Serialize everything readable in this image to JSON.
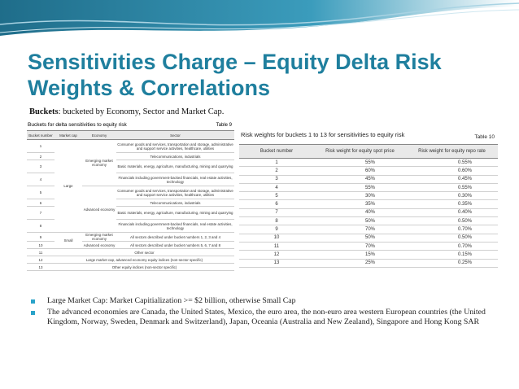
{
  "title": "Sensitivities Charge – Equity Delta Risk Weights & Correlations",
  "buckets_note": {
    "label": "Buckets",
    "text": ": bucketed by Economy, Sector and Market Cap."
  },
  "table9": {
    "caption": "Buckets for delta sensitivities to equity risk",
    "number": "Table 9",
    "headers": [
      "Bucket number",
      "Market cap",
      "Economy",
      "Sector"
    ],
    "market_cap": {
      "large": "Large",
      "small": "Small"
    },
    "economy": {
      "emerging": "Emerging market economy",
      "advanced": "Advanced economy"
    },
    "rows": [
      {
        "bucket": "1",
        "sector": "Consumer goods and services, transportation and storage, administrative and support service activities, healthcare, utilities"
      },
      {
        "bucket": "2",
        "sector": "Telecommunications, industrials"
      },
      {
        "bucket": "3",
        "sector": "Basic materials, energy, agriculture, manufacturing, mining and quarrying"
      },
      {
        "bucket": "4",
        "sector": "Financials including government-backed financials, real estate activities, technology"
      },
      {
        "bucket": "5",
        "sector": "Consumer goods and services, transportation and storage, administrative and support service activities, healthcare, utilities"
      },
      {
        "bucket": "6",
        "sector": "Telecommunications, industrials"
      },
      {
        "bucket": "7",
        "sector": "Basic materials, energy, agriculture, manufacturing, mining and quarrying"
      },
      {
        "bucket": "8",
        "sector": "Financials including government-backed financials, real estate activities, technology"
      },
      {
        "bucket": "9",
        "economy": "Emerging market economy",
        "sector": "All sectors described under bucket numbers 1, 2, 3 and 4"
      },
      {
        "bucket": "10",
        "economy": "Advanced economy",
        "sector": "All sectors described under bucket numbers 5, 6, 7 and 8"
      },
      {
        "bucket": "11",
        "sector": "Other sector"
      },
      {
        "bucket": "12",
        "sector": "Large market cap, advanced economy equity indices (non-sector specific)"
      },
      {
        "bucket": "13",
        "sector": "Other equity indices (non-sector specific)"
      }
    ]
  },
  "table10": {
    "caption": "Risk weights for buckets 1 to 13 for sensitivities to equity risk",
    "number": "Table 10",
    "headers": [
      "Bucket number",
      "Risk weight for equity spot price",
      "Risk weight for equity repo rate"
    ],
    "rows": [
      {
        "bucket": "1",
        "spot": "55%",
        "repo": "0.55%"
      },
      {
        "bucket": "2",
        "spot": "60%",
        "repo": "0.60%"
      },
      {
        "bucket": "3",
        "spot": "45%",
        "repo": "0.45%"
      },
      {
        "bucket": "4",
        "spot": "55%",
        "repo": "0.55%"
      },
      {
        "bucket": "5",
        "spot": "30%",
        "repo": "0.30%"
      },
      {
        "bucket": "6",
        "spot": "35%",
        "repo": "0.35%"
      },
      {
        "bucket": "7",
        "spot": "40%",
        "repo": "0.40%"
      },
      {
        "bucket": "8",
        "spot": "50%",
        "repo": "0.50%"
      },
      {
        "bucket": "9",
        "spot": "70%",
        "repo": "0.70%"
      },
      {
        "bucket": "10",
        "spot": "50%",
        "repo": "0.50%"
      },
      {
        "bucket": "11",
        "spot": "70%",
        "repo": "0.70%"
      },
      {
        "bucket": "12",
        "spot": "15%",
        "repo": "0.15%"
      },
      {
        "bucket": "13",
        "spot": "25%",
        "repo": "0.25%"
      }
    ]
  },
  "bullets": [
    "Large Market Cap: Market Capitialization >= $2 billion, otherwise Small Cap",
    "The advanced economies are Canada, the United States, Mexico, the euro area, the non-euro area western European countries (the United Kingdom, Norway, Sweden, Denmark and Switzerland), Japan, Oceania (Australia and New Zealand), Singapore and Hong Kong SAR"
  ],
  "colors": {
    "title": "#1f7f9e",
    "bullet": "#2aa3c9",
    "band": "#1f6d8a"
  }
}
